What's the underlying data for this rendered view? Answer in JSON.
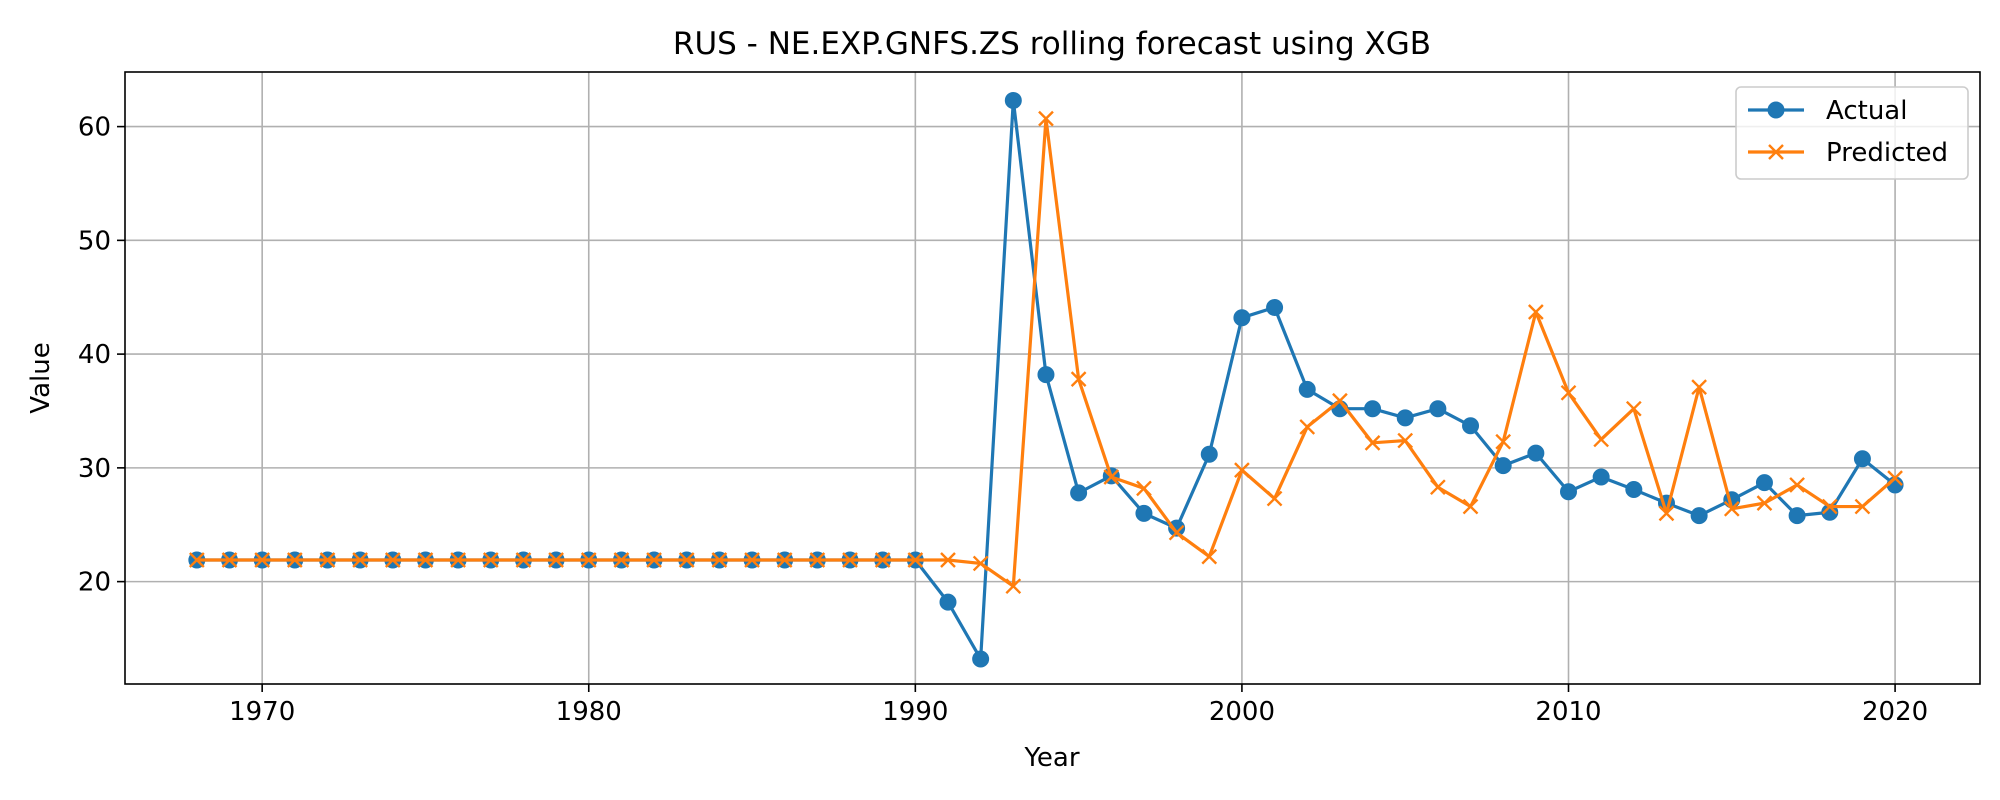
{
  "chart_data": {
    "type": "line",
    "title": "RUS - NE.EXP.GNFS.ZS rolling forecast using XGB",
    "xlabel": "Year",
    "ylabel": "Value",
    "xlim": [
      1965.8,
      2022.6
    ],
    "ylim": [
      11.0,
      64.8
    ],
    "xticks": [
      1970,
      1980,
      1990,
      2000,
      2010,
      2020
    ],
    "yticks": [
      20,
      30,
      40,
      50,
      60
    ],
    "grid": true,
    "legend_position": "top-right",
    "x": [
      1968,
      1969,
      1970,
      1971,
      1972,
      1973,
      1974,
      1975,
      1976,
      1977,
      1978,
      1979,
      1980,
      1981,
      1982,
      1983,
      1984,
      1985,
      1986,
      1987,
      1988,
      1989,
      1990,
      1991,
      1992,
      1993,
      1994,
      1995,
      1996,
      1997,
      1998,
      1999,
      2000,
      2001,
      2002,
      2003,
      2004,
      2005,
      2006,
      2007,
      2008,
      2009,
      2010,
      2011,
      2012,
      2013,
      2014,
      2015,
      2016,
      2017,
      2018,
      2019,
      2020
    ],
    "series": [
      {
        "name": "Actual",
        "color": "#1f77b4",
        "marker": "circle",
        "values": [
          21.9,
          21.9,
          21.9,
          21.9,
          21.9,
          21.9,
          21.9,
          21.9,
          21.9,
          21.9,
          21.9,
          21.9,
          21.9,
          21.9,
          21.9,
          21.9,
          21.9,
          21.9,
          21.9,
          21.9,
          21.9,
          21.9,
          21.9,
          18.2,
          13.2,
          62.3,
          38.2,
          27.8,
          29.3,
          26.0,
          24.7,
          31.2,
          43.2,
          44.1,
          36.9,
          35.2,
          35.2,
          34.4,
          35.2,
          33.7,
          30.2,
          31.3,
          27.9,
          29.2,
          28.1,
          26.9,
          25.8,
          27.2,
          28.7,
          25.8,
          26.1,
          30.8,
          28.5
        ]
      },
      {
        "name": "Predicted",
        "color": "#ff7f0e",
        "marker": "x",
        "values": [
          21.9,
          21.9,
          21.9,
          21.9,
          21.9,
          21.9,
          21.9,
          21.9,
          21.9,
          21.9,
          21.9,
          21.9,
          21.9,
          21.9,
          21.9,
          21.9,
          21.9,
          21.9,
          21.9,
          21.9,
          21.9,
          21.9,
          21.9,
          21.9,
          21.6,
          19.6,
          60.7,
          37.8,
          29.2,
          28.2,
          24.3,
          22.2,
          29.8,
          27.3,
          33.6,
          35.9,
          32.2,
          32.4,
          28.3,
          26.6,
          32.3,
          43.7,
          36.6,
          32.5,
          35.2,
          26.0,
          37.1,
          26.4,
          26.9,
          28.5,
          26.6,
          26.6,
          29.1
        ]
      }
    ]
  }
}
